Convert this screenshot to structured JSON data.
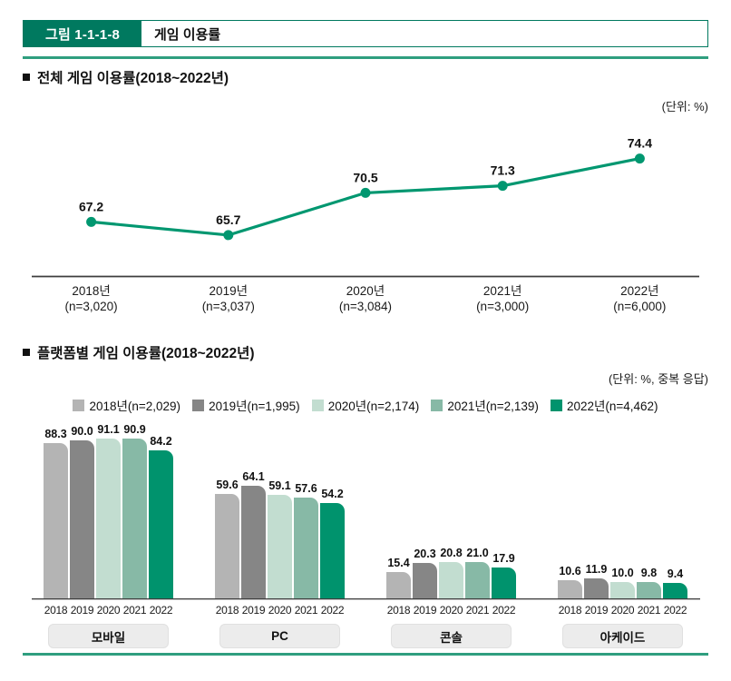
{
  "header": {
    "code": "그림 1-1-1-8",
    "title": "게임 이용률"
  },
  "sections": {
    "overall": {
      "heading": "전체 게임 이용률(2018~2022년)",
      "unit": "(단위: %)"
    },
    "platform": {
      "heading": "플랫폼별 게임 이용률(2018~2022년)",
      "unit": "(단위: %, 중복 응답)"
    }
  },
  "colors": {
    "brand_green": "#00795f",
    "rule_green": "#2f9e7f",
    "line_green": "#009770",
    "axis_dark": "#3d3d3d",
    "series": [
      "#b4b4b4",
      "#868686",
      "#c2ddd0",
      "#87b9a6",
      "#00936d"
    ],
    "category_box_bg": "#ececec"
  },
  "chart_data": [
    {
      "type": "line",
      "title": "전체 게임 이용률(2018~2022년)",
      "unit_note": "(단위: %)",
      "categories": [
        "2018년",
        "2019년",
        "2020년",
        "2021년",
        "2022년"
      ],
      "category_sublabels": [
        "(n=3,020)",
        "(n=3,037)",
        "(n=3,084)",
        "(n=3,000)",
        "(n=6,000)"
      ],
      "values": [
        67.2,
        65.7,
        70.5,
        71.3,
        74.4
      ],
      "ylim": [
        61,
        79
      ],
      "grid": false,
      "legend_position": "none",
      "line_color": "#009770"
    },
    {
      "type": "bar",
      "title": "플랫폼별 게임 이용률(2018~2022년)",
      "unit_note": "(단위: %, 중복 응답)",
      "legend": [
        "2018년(n=2,029)",
        "2019년(n=1,995)",
        "2020년(n=2,174)",
        "2021년(n=2,139)",
        "2022년(n=4,462)"
      ],
      "legend_position": "top",
      "categories": [
        "모바일",
        "PC",
        "콘솔",
        "아케이드"
      ],
      "bar_year_labels": [
        "2018",
        "2019",
        "2020",
        "2021",
        "2022"
      ],
      "series": [
        {
          "name": "2018년(n=2,029)",
          "color": "#b4b4b4",
          "values": [
            88.3,
            59.6,
            15.4,
            10.6
          ]
        },
        {
          "name": "2019년(n=1,995)",
          "color": "#868686",
          "values": [
            90.0,
            64.1,
            20.3,
            11.9
          ]
        },
        {
          "name": "2020년(n=2,174)",
          "color": "#c2ddd0",
          "values": [
            91.1,
            59.1,
            20.8,
            10.0
          ]
        },
        {
          "name": "2021년(n=2,139)",
          "color": "#87b9a6",
          "values": [
            90.9,
            57.6,
            21.0,
            9.8
          ]
        },
        {
          "name": "2022년(n=4,462)",
          "color": "#00936d",
          "values": [
            84.2,
            54.2,
            17.9,
            9.4
          ]
        }
      ],
      "ylim": [
        0,
        95
      ],
      "grid": false
    }
  ]
}
